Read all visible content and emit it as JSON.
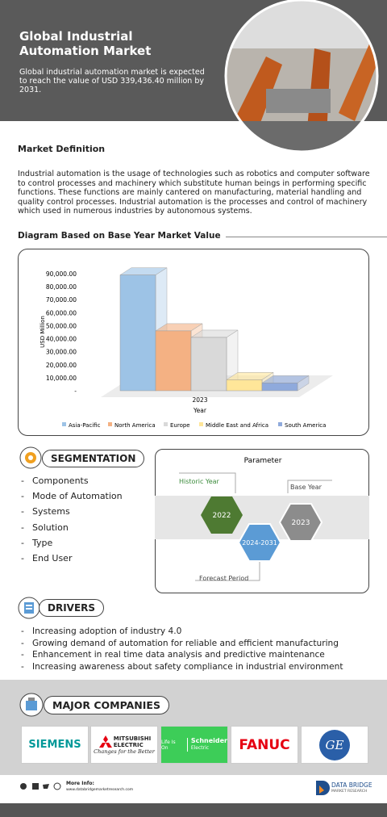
{
  "header": {
    "title": "Global Industrial Automation Market",
    "subtitle": "Global industrial automation market is expected to reach the value of USD 339,436.40 million by 2031."
  },
  "definition": {
    "heading": "Market Definition",
    "text": "Industrial automation is the usage of technologies such as robotics and computer software to control processes and machinery which substitute human beings in performing specific functions. These functions are mainly cantered on manufacturing, material handling and quality control processes. Industrial automation is the processes and control of machinery which used in numerous industries by autonomous systems."
  },
  "diagram_heading": "Diagram Based on Base Year Market Value",
  "chart_data": {
    "type": "bar3d",
    "categories": [
      "2023"
    ],
    "xlabel": "Year",
    "ylabel": "USD Million",
    "series": [
      {
        "name": "Asia-Pacific",
        "color": "#9dc3e6",
        "values": [
          89000
        ]
      },
      {
        "name": "North America",
        "color": "#f4b183",
        "values": [
          46000
        ]
      },
      {
        "name": "Europe",
        "color": "#d9d9d9",
        "values": [
          41000
        ]
      },
      {
        "name": "Middle East and Africa",
        "color": "#ffe699",
        "values": [
          8500
        ]
      },
      {
        "name": "South America",
        "color": "#8faadc",
        "values": [
          6000
        ]
      }
    ],
    "ylim": [
      0,
      90000
    ],
    "yticks": [
      {
        "value": 0,
        "label": "-"
      },
      {
        "value": 10000,
        "label": "10,000.00"
      },
      {
        "value": 20000,
        "label": "20,000.00"
      },
      {
        "value": 30000,
        "label": "30,000.00"
      },
      {
        "value": 40000,
        "label": "40,000.00"
      },
      {
        "value": 50000,
        "label": "50,000.00"
      },
      {
        "value": 60000,
        "label": "60,000.00"
      },
      {
        "value": 70000,
        "label": "70,000.00"
      },
      {
        "value": 80000,
        "label": "80,000.00"
      },
      {
        "value": 90000,
        "label": "90,000.00"
      }
    ],
    "legend": "bottom"
  },
  "segmentation": {
    "heading": "SEGMENTATION",
    "items": [
      "Components",
      "Mode of Automation",
      "Systems",
      "Solution",
      "Type",
      "End User"
    ]
  },
  "parameter": {
    "title": "Parameter",
    "historic_label": "Historic Year",
    "base_label": "Base Year",
    "forecast_label": "Forecast Period",
    "historic": "2022",
    "forecast": "2024-2031",
    "base": "2023"
  },
  "drivers": {
    "heading": "DRIVERS",
    "items": [
      "Increasing adoption of industry 4.0",
      "Growing demand of automation for reliable and efficient manufacturing",
      "Enhancement in real time data analysis and predictive maintenance",
      "Increasing awareness about safety compliance in industrial environment"
    ]
  },
  "companies": {
    "heading": "MAJOR COMPANIES",
    "siemens": "SIEMENS",
    "mitsubishi_1": "MITSUBISHI",
    "mitsubishi_2": "ELECTRIC",
    "mitsubishi_tag": "Changes for the Better",
    "schneider_tag": "Life Is On",
    "schneider": "Schneider",
    "schneider_2": "Electric",
    "fanuc": "FANUC",
    "ge": "GE"
  },
  "footer": {
    "more": "More Info:",
    "url": "www.databridgemarketresearch.com",
    "brand": "DATA BRIDGE",
    "brand_sub": "MARKET RESEARCH"
  }
}
